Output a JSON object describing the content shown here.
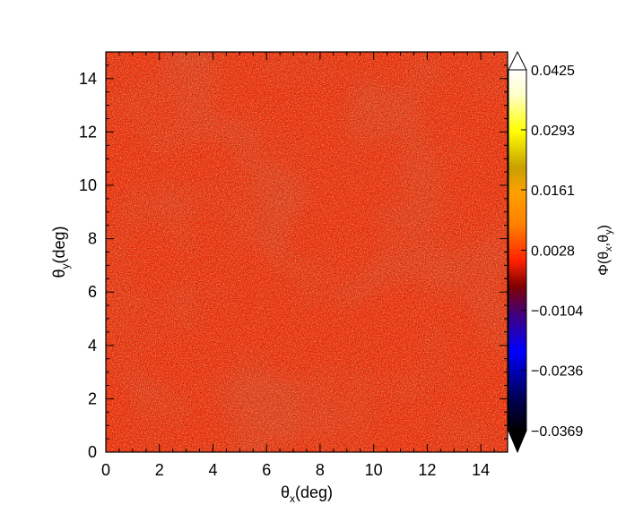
{
  "chart_data": {
    "type": "heatmap",
    "xlim": [
      0,
      15
    ],
    "ylim": [
      0,
      15
    ],
    "x_ticks": [
      "0",
      "2",
      "4",
      "6",
      "8",
      "10",
      "12",
      "14"
    ],
    "y_ticks": [
      "0",
      "2",
      "4",
      "6",
      "8",
      "10",
      "12",
      "14"
    ],
    "xlabel": {
      "symbol": "θ",
      "sub": "x",
      "unit": "(deg)"
    },
    "ylabel": {
      "symbol": "θ",
      "sub": "y",
      "unit": "(deg)"
    },
    "colorbar": {
      "label": {
        "pre": "Φ(θ",
        "sub1": "x",
        "mid": ",θ",
        "sub2": "y",
        "post": ")"
      },
      "min": -0.0369,
      "max": 0.0425,
      "tick_values": [
        0.0425,
        0.0293,
        0.0161,
        0.0028,
        -0.0104,
        -0.0236,
        -0.0369
      ],
      "tick_labels": [
        "0.0425",
        "0.0293",
        "0.0161",
        "0.0028",
        "−0.0104",
        "−0.0236",
        "−0.0369"
      ],
      "extend": "both",
      "colormap": [
        [
          0.0,
          "#000000"
        ],
        [
          0.1,
          "#000060"
        ],
        [
          0.22,
          "#0000ff"
        ],
        [
          0.32,
          "#400080"
        ],
        [
          0.4,
          "#800000"
        ],
        [
          0.47,
          "#ff2000"
        ],
        [
          0.57,
          "#ff8000"
        ],
        [
          0.66,
          "#ffa000"
        ],
        [
          0.73,
          "#c8a000"
        ],
        [
          0.83,
          "#ffff00"
        ],
        [
          0.93,
          "#ffffc8"
        ],
        [
          1.0,
          "#ffffff"
        ]
      ]
    },
    "field": {
      "background_value": 0.0,
      "background_color": "#fa3a16",
      "description_colors": [
        "#fa3a16",
        "#ff7a20",
        "#b81a10",
        "#2a0a40"
      ]
    }
  }
}
